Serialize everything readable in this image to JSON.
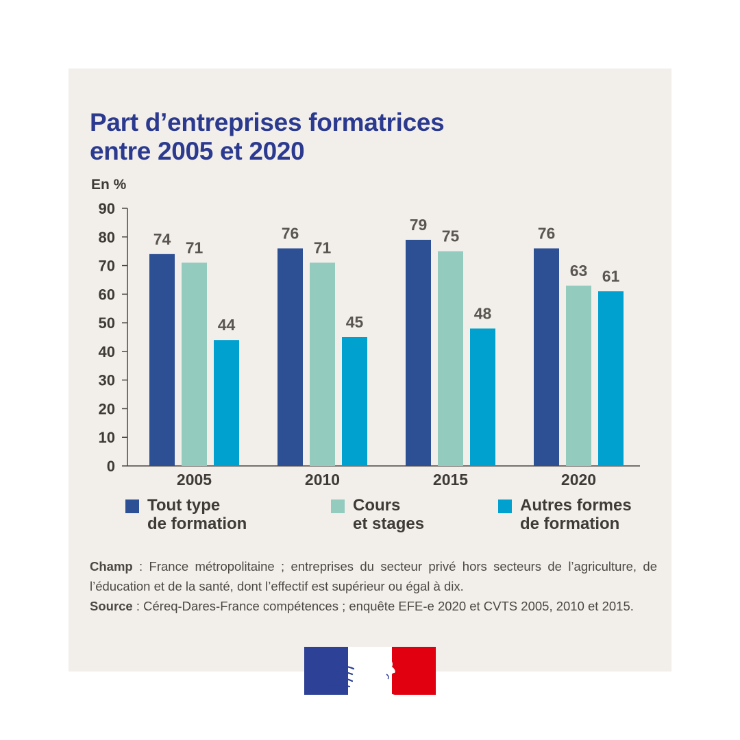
{
  "title_lines": [
    "Part d’entreprises formatrices",
    "entre 2005 et 2020"
  ],
  "colors": {
    "background": "#f2efeb",
    "title": "#2b3a8f",
    "text": "#4b4743",
    "series": [
      "#2d4f94",
      "#93cbbf",
      "#00a1cf"
    ]
  },
  "chart_data": {
    "type": "bar",
    "ylabel": "En %",
    "ylim": [
      0,
      90
    ],
    "yticks": [
      0,
      10,
      20,
      30,
      40,
      50,
      60,
      70,
      80,
      90
    ],
    "categories": [
      "2005",
      "2010",
      "2015",
      "2020"
    ],
    "series": [
      {
        "name": "Tout type de formation",
        "legend_lines": [
          "Tout type",
          "de formation"
        ],
        "color": "#2d4f94",
        "values": [
          74,
          76,
          79,
          76
        ]
      },
      {
        "name": "Cours et stages",
        "legend_lines": [
          "Cours",
          "et stages"
        ],
        "color": "#93cbbf",
        "values": [
          71,
          71,
          75,
          63
        ]
      },
      {
        "name": "Autres formes de formation",
        "legend_lines": [
          "Autres formes",
          "de formation"
        ],
        "color": "#00a1cf",
        "values": [
          44,
          45,
          48,
          61
        ]
      }
    ],
    "legend_position": "bottom",
    "grid": false
  },
  "notes": {
    "champ_label": "Champ",
    "champ_text": " : France métropolitaine ; entreprises du secteur privé hors secteurs de l’agriculture, de l’éducation et de la santé, dont l’effectif est supérieur ou égal à dix.",
    "source_label": "Source",
    "source_text": " : Céreq-Dares-France compétences ; enquête EFE-e 2020 et CVTS 2005, 2010 et 2015."
  },
  "logo": {
    "name": "Marianne logo",
    "colors": [
      "#2d4196",
      "#ffffff",
      "#e1000f"
    ]
  }
}
